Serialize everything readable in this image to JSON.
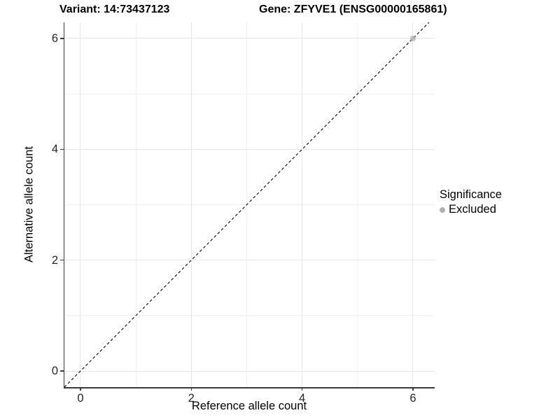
{
  "chart_data": {
    "type": "scatter",
    "title_left": "Variant: 14:73437123",
    "title_right": "Gene: ZFYVE1 (ENSG00000165861)",
    "xlabel": "Reference allele count",
    "ylabel": "Alternative allele count",
    "xlim": [
      -0.29,
      6.38
    ],
    "ylim": [
      -0.29,
      6.29
    ],
    "xticks": [
      0,
      2,
      4,
      6
    ],
    "yticks": [
      0,
      2,
      4,
      6
    ],
    "xticks_minor": [
      1,
      3,
      5
    ],
    "yticks_minor": [
      1,
      3,
      5
    ],
    "grid": "major+minor",
    "background": "#ffffff",
    "identity_line": {
      "slope": 1,
      "intercept": 0,
      "linetype": "dashed",
      "color": "#000000"
    },
    "series": [
      {
        "name": "Excluded",
        "color": "#b0b0b0",
        "points": [
          {
            "x": 6,
            "y": 6
          }
        ]
      }
    ],
    "legend": {
      "title": "Significance",
      "position": "right",
      "items": [
        {
          "label": "Excluded",
          "color": "#b0b0b0"
        }
      ]
    },
    "colors": {
      "axis_line": "#3b3b3b",
      "grid_major": "#e7e7e7",
      "grid_minor": "#f1f1f1",
      "tick_text": "#262626"
    }
  }
}
